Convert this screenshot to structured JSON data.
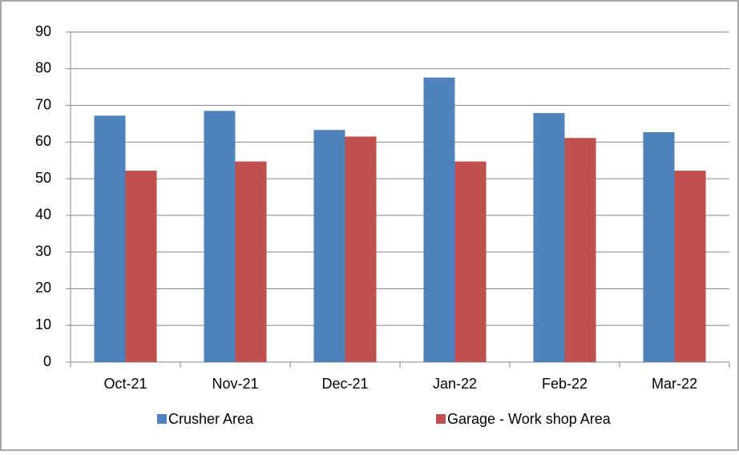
{
  "chart_data": {
    "type": "bar",
    "categories": [
      "Oct-21",
      "Nov-21",
      "Dec-21",
      "Jan-22",
      "Feb-22",
      "Mar-22"
    ],
    "series": [
      {
        "name": "Crusher Area",
        "color": "#4f81bd",
        "values": [
          67.2,
          68.5,
          63.3,
          77.6,
          67.9,
          62.7
        ]
      },
      {
        "name": "Garage - Work shop Area",
        "color": "#c0504d",
        "values": [
          52.2,
          54.7,
          61.5,
          54.7,
          61.1,
          52.2
        ]
      }
    ],
    "ylim": [
      0,
      90
    ],
    "yticks": [
      0,
      10,
      20,
      30,
      40,
      50,
      60,
      70,
      80,
      90
    ],
    "grid": true,
    "legend": "bottom"
  }
}
